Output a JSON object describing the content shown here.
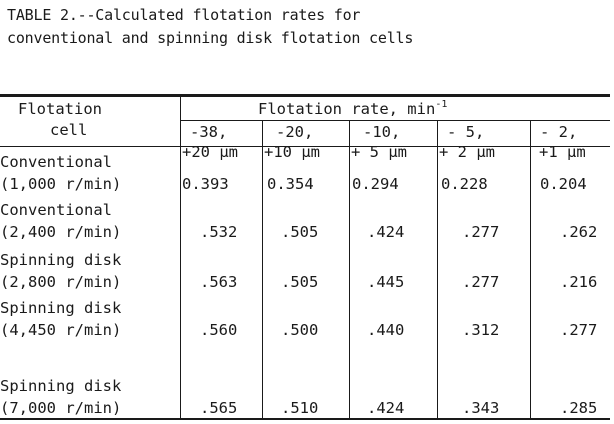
{
  "caption": {
    "line1": "TABLE 2.--Calculated flotation rates for",
    "line2": "conventional and spinning disk flotation cells"
  },
  "header": {
    "stub_line1": "Flotation",
    "stub_line2": "cell",
    "span_label": "Flotation rate, min",
    "span_sup": "-1",
    "columns": [
      {
        "line1": "-38,",
        "line2": "+20 µm"
      },
      {
        "line1": "-20,",
        "line2": "+10 µm"
      },
      {
        "line1": "-10,",
        "line2": "+ 5 µm"
      },
      {
        "line1": "- 5,",
        "line2": "+ 2 µm"
      },
      {
        "line1": "- 2,",
        "line2": "+1 µm"
      }
    ]
  },
  "rows": [
    {
      "name": "Conventional",
      "speed": "(1,000 r/min)",
      "values": [
        "0.393",
        "0.354",
        "0.294",
        "0.228",
        "0.204"
      ]
    },
    {
      "name": "Conventional",
      "speed": "(2,400 r/min)",
      "values": [
        ".532",
        ".505",
        ".424",
        ".277",
        ".262"
      ]
    },
    {
      "name": "Spinning disk",
      "speed": "(2,800 r/min)",
      "values": [
        ".563",
        ".505",
        ".445",
        ".277",
        ".216"
      ]
    },
    {
      "name": "Spinning disk",
      "speed": "(4,450 r/min)",
      "values": [
        ".560",
        ".500",
        ".440",
        ".312",
        ".277"
      ]
    },
    {
      "name": "Spinning disk",
      "speed": "(7,000 r/min)",
      "values": [
        ".565",
        ".510",
        ".424",
        ".343",
        ".285"
      ]
    }
  ]
}
